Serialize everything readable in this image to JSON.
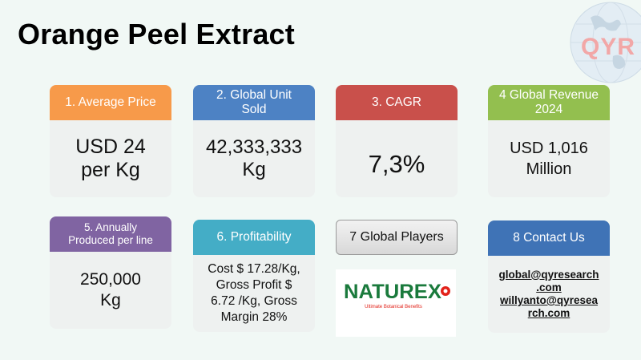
{
  "title": "Orange Peel Extract",
  "logo": {
    "text": "QYR"
  },
  "cards": [
    {
      "header": "1. Average Price",
      "body": "USD 24\n per Kg",
      "color": "#f79a4a"
    },
    {
      "header": "2. Global Unit\nSold",
      "body": "42,333,333\nKg",
      "color": "#4d82c4"
    },
    {
      "header": "3. CAGR",
      "body": "7,3%",
      "color": "#c9504b"
    },
    {
      "header": "4 Global Revenue\n2024",
      "body": "USD 1,016\nMillion",
      "color": "#93bf4f"
    },
    {
      "header": "5. Annually\nProduced per line",
      "body": "250,000\nKg",
      "color": "#8064a2"
    },
    {
      "header": "6. Profitability",
      "body": "Cost $ 17.28/Kg,\nGross Profit $\n6.72 /Kg, Gross\nMargin 28%",
      "color": "#44adc6"
    },
    {
      "header": "8 Contact Us",
      "color": "#3f73b6"
    }
  ],
  "players": {
    "label": "7 Global Players",
    "logo_name": "NATUREX",
    "logo_tagline": "Ultimate Botanical Benefits",
    "logo_color": "#1a7a3c",
    "logo_accent": "#e2231a"
  },
  "contact": {
    "email1": "global@qyresearch\n.com",
    "email2": "willyanto@qyresea\nrch.com"
  }
}
